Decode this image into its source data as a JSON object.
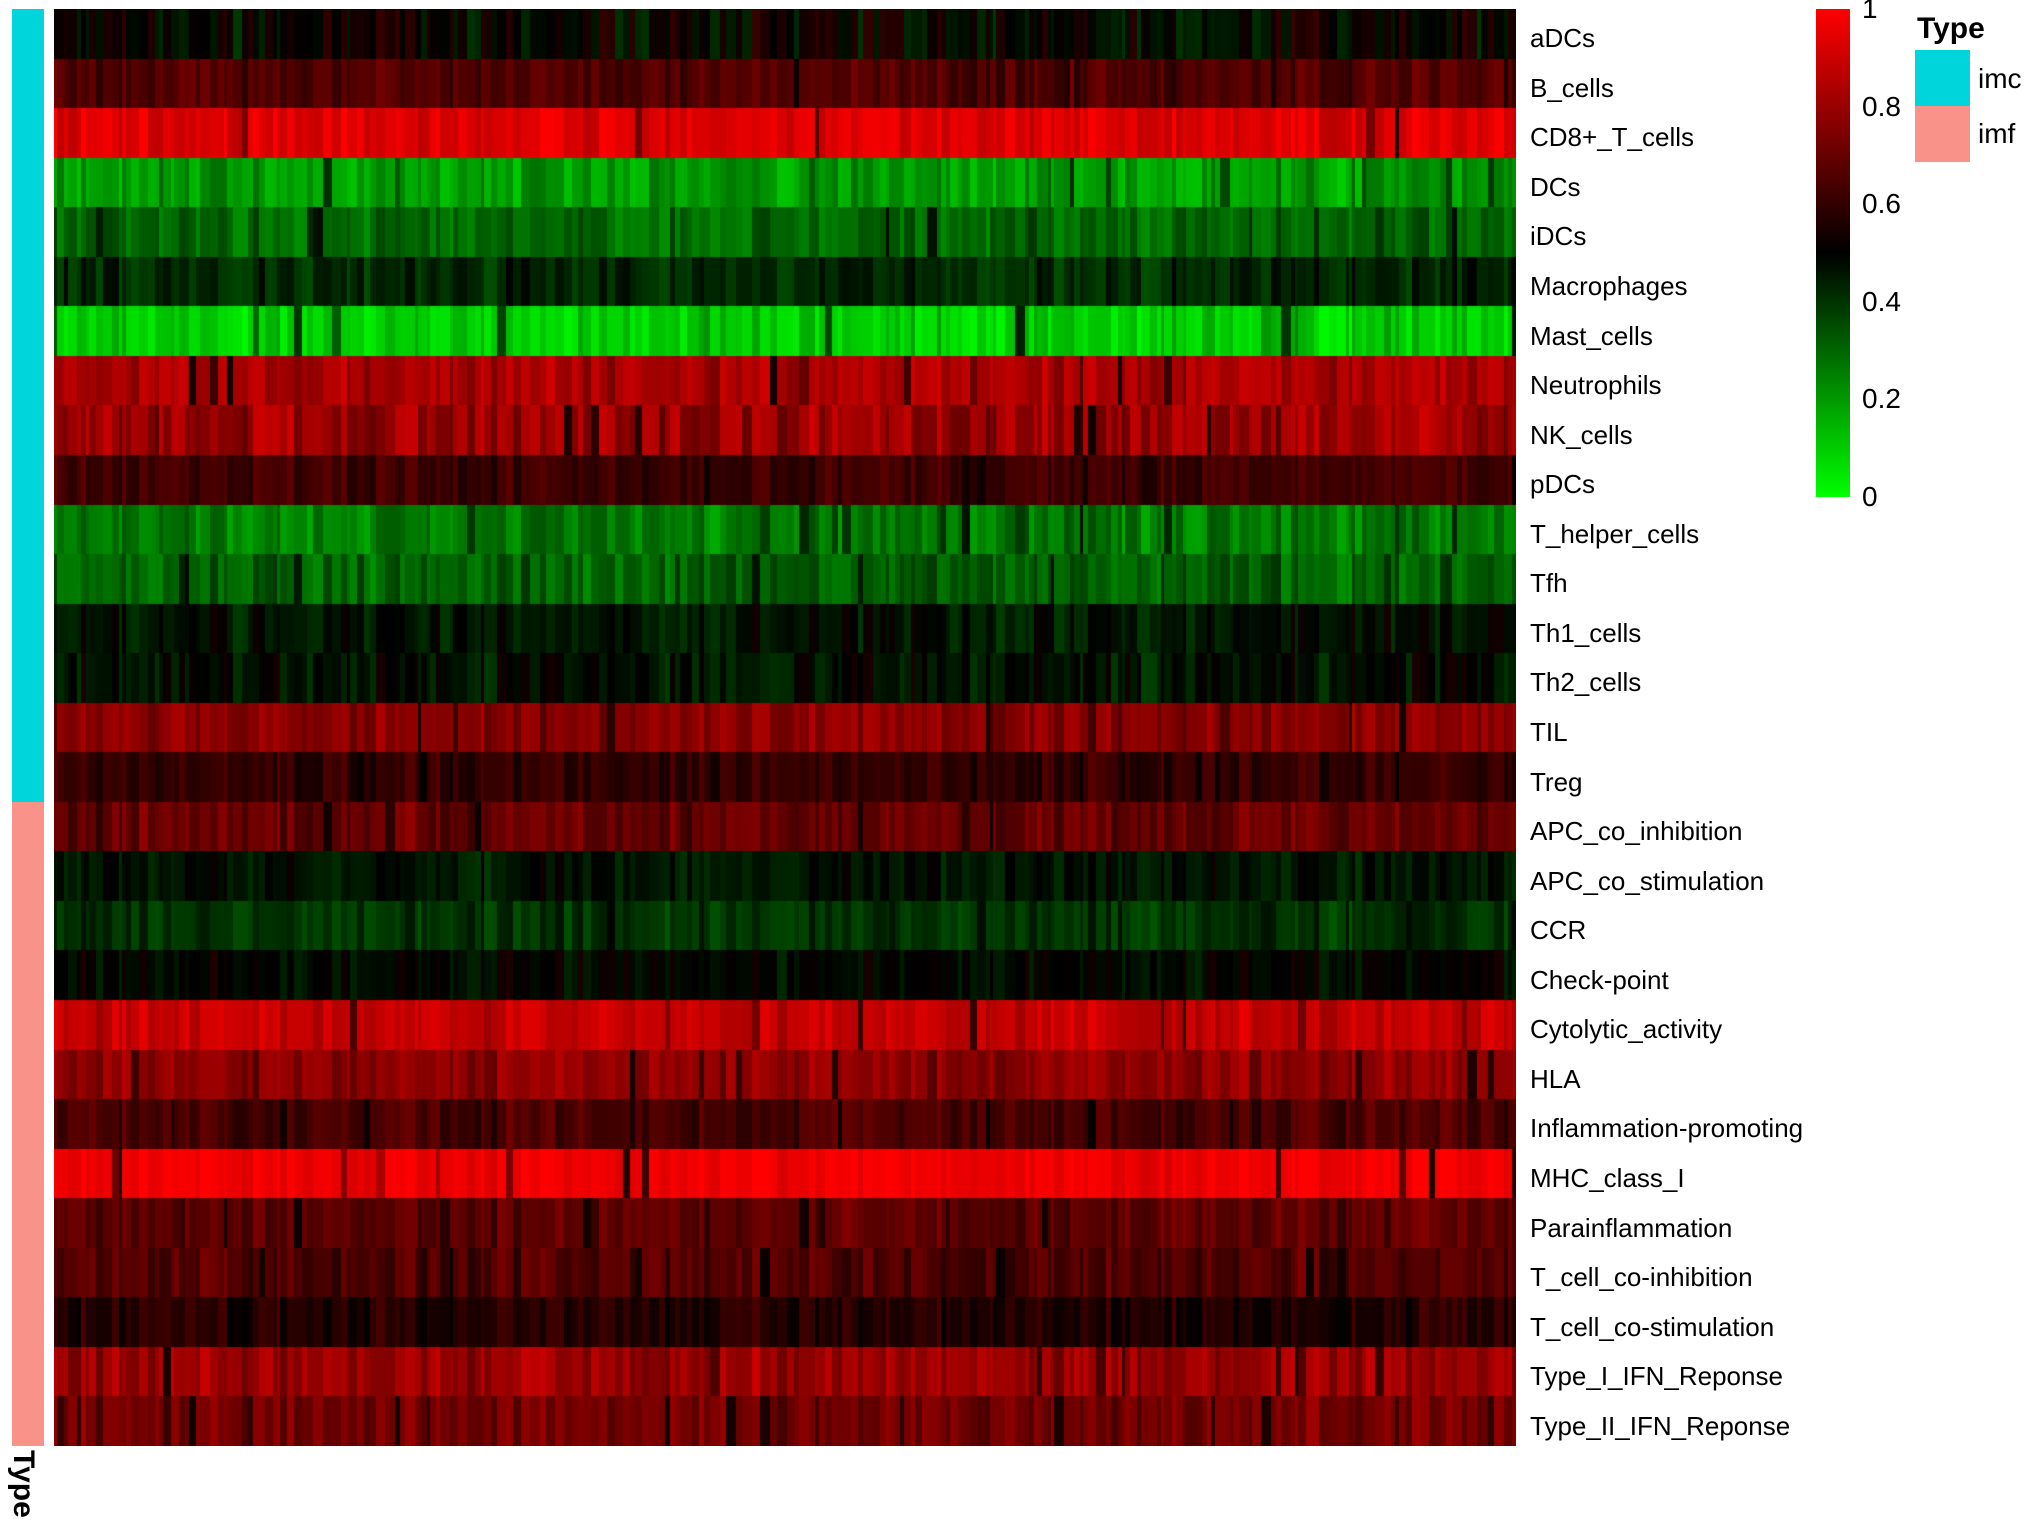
{
  "figure": {
    "background": "#ffffff",
    "annotation_title": "Type",
    "legend": {
      "title": "Type",
      "entries": [
        {
          "label": "imc",
          "color": "#00d5dc"
        },
        {
          "label": "imf",
          "color": "#f9938a"
        }
      ]
    },
    "colorbar": {
      "ticks": [
        "1",
        "0.8",
        "0.6",
        "0.4",
        "0.2",
        "0"
      ],
      "top_color": "#ff0000",
      "mid_color": "#000000",
      "bottom_color": "#00ff00"
    }
  },
  "chart_data": {
    "type": "heatmap",
    "title": "",
    "value_range": [
      0,
      1
    ],
    "colorscale": [
      {
        "value": 0,
        "color": "#00ff00"
      },
      {
        "value": 0.5,
        "color": "#000000"
      },
      {
        "value": 1,
        "color": "#ff0000"
      }
    ],
    "legend_ticks": [
      1,
      0.8,
      0.6,
      0.4,
      0.2,
      0
    ],
    "n_samples": 300,
    "row_groups": [
      {
        "name": "imc",
        "color": "#00d5dc",
        "count": 16
      },
      {
        "name": "imf",
        "color": "#f9938a",
        "count": 13
      }
    ],
    "rows": [
      {
        "label": "aDCs",
        "group": "imc",
        "mean": 0.5,
        "spread": 0.09
      },
      {
        "label": "B_cells",
        "group": "imc",
        "mean": 0.66,
        "spread": 0.05
      },
      {
        "label": "CD8+_T_cells",
        "group": "imc",
        "mean": 0.93,
        "spread": 0.05
      },
      {
        "label": "DCs",
        "group": "imc",
        "mean": 0.2,
        "spread": 0.07
      },
      {
        "label": "iDCs",
        "group": "imc",
        "mean": 0.3,
        "spread": 0.06
      },
      {
        "label": "Macrophages",
        "group": "imc",
        "mean": 0.42,
        "spread": 0.05
      },
      {
        "label": "Mast_cells",
        "group": "imc",
        "mean": 0.1,
        "spread": 0.06
      },
      {
        "label": "Neutrophils",
        "group": "imc",
        "mean": 0.83,
        "spread": 0.06
      },
      {
        "label": "NK_cells",
        "group": "imc",
        "mean": 0.8,
        "spread": 0.09
      },
      {
        "label": "pDCs",
        "group": "imc",
        "mean": 0.62,
        "spread": 0.04
      },
      {
        "label": "T_helper_cells",
        "group": "imc",
        "mean": 0.26,
        "spread": 0.07
      },
      {
        "label": "Tfh",
        "group": "imc",
        "mean": 0.31,
        "spread": 0.07
      },
      {
        "label": "Th1_cells",
        "group": "imc",
        "mean": 0.46,
        "spread": 0.05
      },
      {
        "label": "Th2_cells",
        "group": "imc",
        "mean": 0.47,
        "spread": 0.06
      },
      {
        "label": "TIL",
        "group": "imc",
        "mean": 0.77,
        "spread": 0.05
      },
      {
        "label": "Treg",
        "group": "imc",
        "mean": 0.6,
        "spread": 0.04
      },
      {
        "label": "APC_co_inhibition",
        "group": "imf",
        "mean": 0.7,
        "spread": 0.06
      },
      {
        "label": "APC_co_stimulation",
        "group": "imf",
        "mean": 0.46,
        "spread": 0.04
      },
      {
        "label": "CCR",
        "group": "imf",
        "mean": 0.4,
        "spread": 0.04
      },
      {
        "label": "Check-point",
        "group": "imf",
        "mean": 0.49,
        "spread": 0.04
      },
      {
        "label": "Cytolytic_activity",
        "group": "imf",
        "mean": 0.88,
        "spread": 0.05
      },
      {
        "label": "HLA",
        "group": "imf",
        "mean": 0.78,
        "spread": 0.05
      },
      {
        "label": "Inflammation-promoting",
        "group": "imf",
        "mean": 0.64,
        "spread": 0.05
      },
      {
        "label": "MHC_class_I",
        "group": "imf",
        "mean": 0.97,
        "spread": 0.02
      },
      {
        "label": "Parainflammation",
        "group": "imf",
        "mean": 0.68,
        "spread": 0.05
      },
      {
        "label": "T_cell_co-inhibition",
        "group": "imf",
        "mean": 0.66,
        "spread": 0.06
      },
      {
        "label": "T_cell_co-stimulation",
        "group": "imf",
        "mean": 0.57,
        "spread": 0.05
      },
      {
        "label": "Type_I_IFN_Reponse",
        "group": "imf",
        "mean": 0.8,
        "spread": 0.07
      },
      {
        "label": "Type_II_IFN_Reponse",
        "group": "imf",
        "mean": 0.72,
        "spread": 0.06
      }
    ]
  }
}
